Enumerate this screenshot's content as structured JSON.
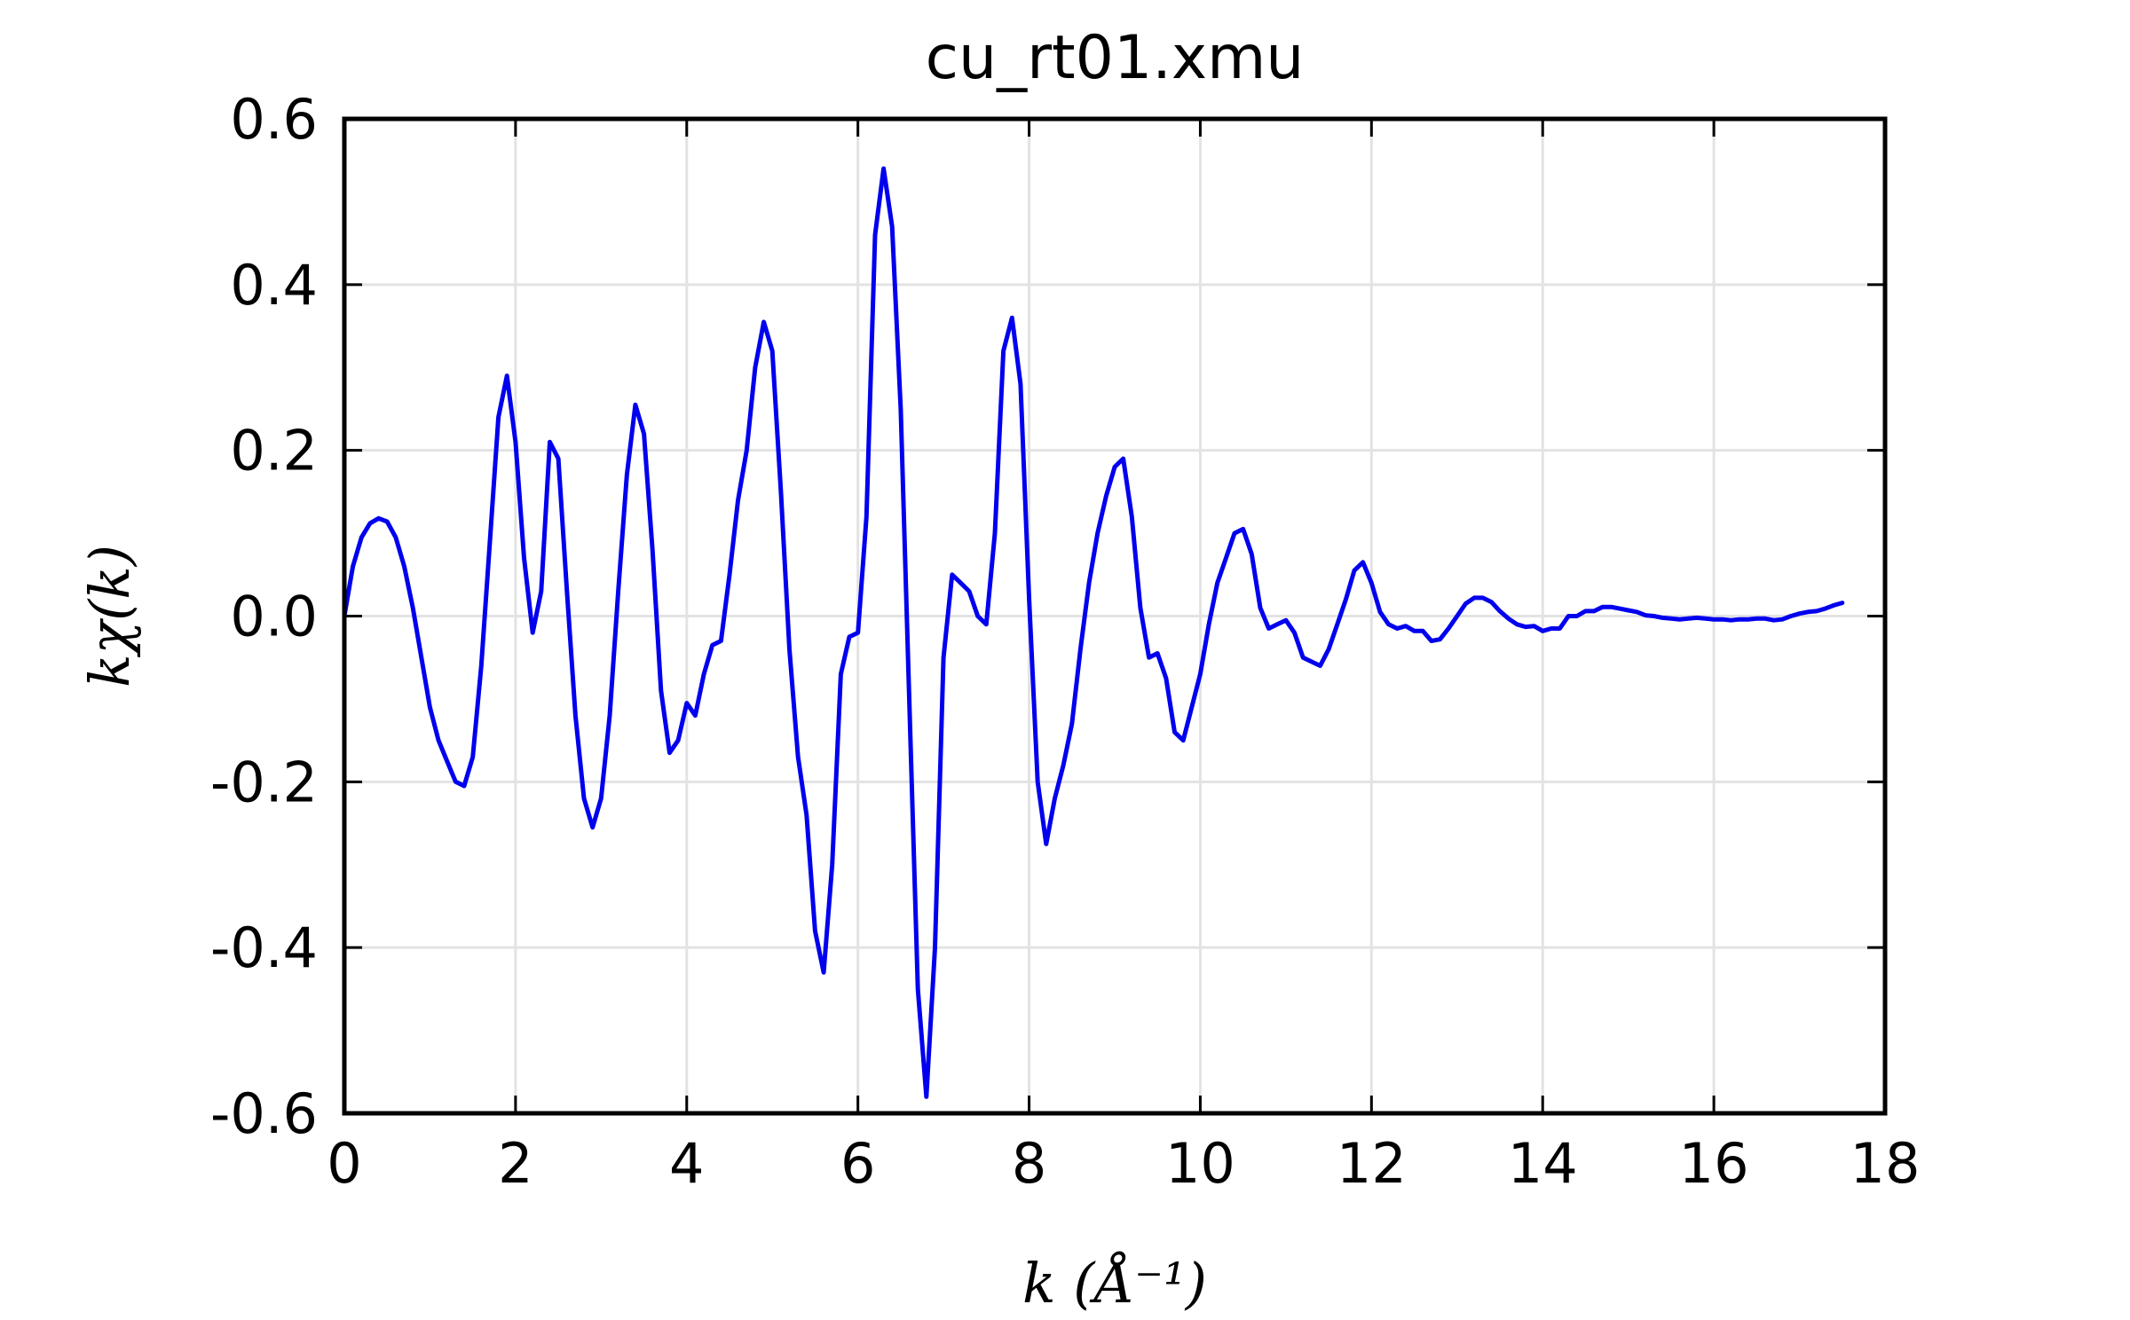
{
  "chart_data": {
    "type": "line",
    "title": "cu_rt01.xmu",
    "xlabel": "k (Å⁻¹)",
    "ylabel": "kχ(k)",
    "xlim": [
      0,
      18
    ],
    "ylim": [
      -0.6,
      0.6
    ],
    "xticks": [
      0,
      2,
      4,
      6,
      8,
      10,
      12,
      14,
      16,
      18
    ],
    "yticks": [
      -0.6,
      -0.4,
      -0.2,
      0.0,
      0.2,
      0.4,
      0.6
    ],
    "xtick_labels": [
      "0",
      "2",
      "4",
      "6",
      "8",
      "10",
      "12",
      "14",
      "16",
      "18"
    ],
    "ytick_labels": [
      "-0.6",
      "-0.4",
      "-0.2",
      "0.0",
      "0.2",
      "0.4",
      "0.6"
    ],
    "grid": true,
    "line_color": "#0000ee",
    "series": [
      {
        "x": [
          0.0,
          0.1,
          0.2,
          0.3,
          0.4,
          0.5,
          0.6,
          0.7,
          0.8,
          0.9,
          1.0,
          1.1,
          1.2,
          1.3,
          1.4,
          1.5,
          1.6,
          1.7,
          1.8,
          1.9,
          2.0,
          2.1,
          2.2,
          2.3,
          2.4,
          2.5,
          2.6,
          2.7,
          2.8,
          2.9,
          3.0,
          3.1,
          3.2,
          3.3,
          3.4,
          3.5,
          3.6,
          3.7,
          3.8,
          3.9,
          4.0,
          4.1,
          4.2,
          4.3,
          4.4,
          4.5,
          4.6,
          4.7,
          4.8,
          4.9,
          5.0,
          5.1,
          5.2,
          5.3,
          5.4,
          5.5,
          5.6,
          5.7,
          5.8,
          5.9,
          6.0,
          6.1,
          6.2,
          6.3,
          6.4,
          6.5,
          6.6,
          6.7,
          6.8,
          6.9,
          7.0,
          7.1,
          7.2,
          7.3,
          7.4,
          7.5,
          7.6,
          7.7,
          7.8,
          7.9,
          8.0,
          8.1,
          8.2,
          8.3,
          8.4,
          8.5,
          8.6,
          8.7,
          8.8,
          8.9,
          9.0,
          9.1,
          9.2,
          9.3,
          9.4,
          9.5,
          9.6,
          9.7,
          9.8,
          9.9,
          10.0,
          10.1,
          10.2,
          10.3,
          10.4,
          10.5,
          10.6,
          10.7,
          10.8,
          10.9,
          11.0,
          11.1,
          11.2,
          11.3,
          11.4,
          11.5,
          11.6,
          11.7,
          11.8,
          11.9,
          12.0,
          12.1,
          12.2,
          12.3,
          12.4,
          12.5,
          12.6,
          12.7,
          12.8,
          12.9,
          13.0,
          13.1,
          13.2,
          13.3,
          13.4,
          13.5,
          13.6,
          13.7,
          13.8,
          13.9,
          14.0,
          14.1,
          14.2,
          14.3,
          14.4,
          14.5,
          14.6,
          14.7,
          14.8,
          14.9,
          15.0,
          15.1,
          15.2,
          15.3,
          15.4,
          15.5,
          15.6,
          15.7,
          15.8,
          15.9,
          16.0,
          16.1,
          16.2,
          16.3,
          16.4,
          16.5,
          16.6,
          16.7,
          16.8,
          16.9,
          17.0,
          17.1,
          17.2,
          17.3,
          17.4,
          17.5
        ],
        "y": [
          0.0,
          0.06,
          0.095,
          0.112,
          0.118,
          0.114,
          0.095,
          0.06,
          0.01,
          -0.05,
          -0.11,
          -0.15,
          -0.175,
          -0.2,
          -0.205,
          -0.17,
          -0.06,
          0.09,
          0.24,
          0.29,
          0.21,
          0.07,
          -0.02,
          0.03,
          0.21,
          0.19,
          0.03,
          -0.12,
          -0.22,
          -0.255,
          -0.22,
          -0.12,
          0.03,
          0.17,
          0.255,
          0.22,
          0.08,
          -0.09,
          -0.165,
          -0.15,
          -0.105,
          -0.12,
          -0.07,
          -0.035,
          -0.03,
          0.05,
          0.14,
          0.2,
          0.3,
          0.355,
          0.32,
          0.15,
          -0.04,
          -0.17,
          -0.24,
          -0.38,
          -0.43,
          -0.3,
          -0.07,
          -0.025,
          -0.02,
          0.12,
          0.46,
          0.54,
          0.47,
          0.25,
          -0.1,
          -0.45,
          -0.58,
          -0.4,
          -0.05,
          0.05,
          0.04,
          0.03,
          0.0,
          -0.01,
          0.1,
          0.32,
          0.36,
          0.28,
          0.02,
          -0.2,
          -0.275,
          -0.22,
          -0.18,
          -0.13,
          -0.04,
          0.04,
          0.1,
          0.145,
          0.18,
          0.19,
          0.12,
          0.01,
          -0.05,
          -0.045,
          -0.075,
          -0.14,
          -0.15,
          -0.11,
          -0.07,
          -0.01,
          0.04,
          0.07,
          0.1,
          0.105,
          0.075,
          0.01,
          -0.015,
          -0.01,
          -0.005,
          -0.02,
          -0.05,
          -0.055,
          -0.06,
          -0.04,
          -0.01,
          0.02,
          0.055,
          0.065,
          0.04,
          0.005,
          -0.01,
          -0.015,
          -0.012,
          -0.018,
          -0.018,
          -0.03,
          -0.028,
          -0.015,
          0.0,
          0.015,
          0.022,
          0.022,
          0.017,
          0.006,
          -0.003,
          -0.01,
          -0.013,
          -0.012,
          -0.018,
          -0.015,
          -0.015,
          0.0,
          0.0,
          0.006,
          0.006,
          0.011,
          0.011,
          0.009,
          0.007,
          0.005,
          0.001,
          0.0,
          -0.002,
          -0.003,
          -0.004,
          -0.003,
          -0.002,
          -0.003,
          -0.004,
          -0.004,
          -0.005,
          -0.004,
          -0.004,
          -0.003,
          -0.003,
          -0.005,
          -0.004,
          0.0,
          0.003,
          0.005,
          0.006,
          0.009,
          0.013,
          0.016
        ]
      }
    ]
  }
}
